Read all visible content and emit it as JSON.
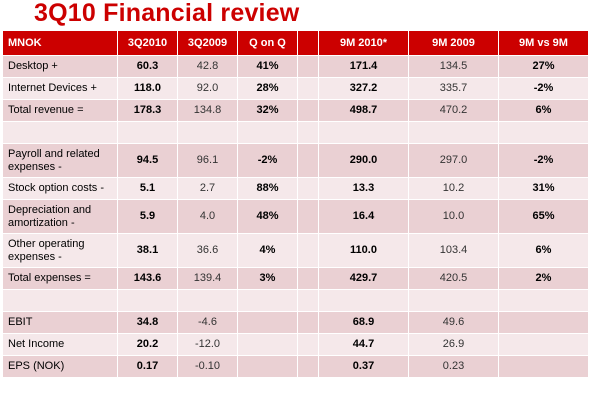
{
  "title": "3Q10 Financial review",
  "table": {
    "headers": [
      "MNOK",
      "3Q2010",
      "3Q2009",
      "Q on Q",
      "9M 2010*",
      "9M 2009",
      "9M vs 9M"
    ],
    "rows": [
      {
        "label": "Desktop +",
        "q3_2010": "60.3",
        "q3_2009": "42.8",
        "q_on_q": "41%",
        "m9_2010": "171.4",
        "m9_2009": "134.5",
        "m9_vs_m9": "27%"
      },
      {
        "label": "Internet Devices +",
        "q3_2010": "118.0",
        "q3_2009": "92.0",
        "q_on_q": "28%",
        "m9_2010": "327.2",
        "m9_2009": "335.7",
        "m9_vs_m9": "-2%"
      },
      {
        "label": "Total revenue =",
        "q3_2010": "178.3",
        "q3_2009": "134.8",
        "q_on_q": "32%",
        "m9_2010": "498.7",
        "m9_2009": "470.2",
        "m9_vs_m9": "6%"
      },
      {
        "label": "Payroll and related expenses -",
        "q3_2010": "94.5",
        "q3_2009": "96.1",
        "q_on_q": "-2%",
        "m9_2010": "290.0",
        "m9_2009": "297.0",
        "m9_vs_m9": "-2%"
      },
      {
        "label": "Stock option costs -",
        "q3_2010": "5.1",
        "q3_2009": "2.7",
        "q_on_q": "88%",
        "m9_2010": "13.3",
        "m9_2009": "10.2",
        "m9_vs_m9": "31%"
      },
      {
        "label": "Depreciation and amortization -",
        "q3_2010": "5.9",
        "q3_2009": "4.0",
        "q_on_q": "48%",
        "m9_2010": "16.4",
        "m9_2009": "10.0",
        "m9_vs_m9": "65%"
      },
      {
        "label": "Other operating expenses -",
        "q3_2010": "38.1",
        "q3_2009": "36.6",
        "q_on_q": "4%",
        "m9_2010": "110.0",
        "m9_2009": "103.4",
        "m9_vs_m9": "6%"
      },
      {
        "label": "Total expenses =",
        "q3_2010": "143.6",
        "q3_2009": "139.4",
        "q_on_q": "3%",
        "m9_2010": "429.7",
        "m9_2009": "420.5",
        "m9_vs_m9": "2%"
      },
      {
        "label": "EBIT",
        "q3_2010": "34.8",
        "q3_2009": "-4.6",
        "q_on_q": "",
        "m9_2010": "68.9",
        "m9_2009": "49.6",
        "m9_vs_m9": ""
      },
      {
        "label": "Net Income",
        "q3_2010": "20.2",
        "q3_2009": "-12.0",
        "q_on_q": "",
        "m9_2010": "44.7",
        "m9_2009": "26.9",
        "m9_vs_m9": ""
      },
      {
        "label": "EPS (NOK)",
        "q3_2010": "0.17",
        "q3_2009": "-0.10",
        "q_on_q": "",
        "m9_2010": "0.37",
        "m9_2009": "0.23",
        "m9_vs_m9": ""
      }
    ]
  },
  "colors": {
    "accent": "#cc0000",
    "row_dark": "#ead0d3",
    "row_light": "#f5e8ea"
  }
}
